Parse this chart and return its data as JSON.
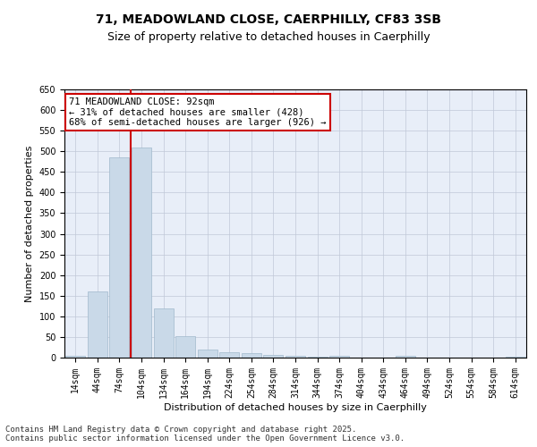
{
  "title_line1": "71, MEADOWLAND CLOSE, CAERPHILLY, CF83 3SB",
  "title_line2": "Size of property relative to detached houses in Caerphilly",
  "xlabel": "Distribution of detached houses by size in Caerphilly",
  "ylabel": "Number of detached properties",
  "categories": [
    "14sqm",
    "44sqm",
    "74sqm",
    "104sqm",
    "134sqm",
    "164sqm",
    "194sqm",
    "224sqm",
    "254sqm",
    "284sqm",
    "314sqm",
    "344sqm",
    "374sqm",
    "404sqm",
    "434sqm",
    "464sqm",
    "494sqm",
    "524sqm",
    "554sqm",
    "584sqm",
    "614sqm"
  ],
  "values": [
    5,
    160,
    485,
    510,
    120,
    52,
    20,
    12,
    10,
    7,
    5,
    3,
    5,
    0,
    0,
    5,
    0,
    0,
    0,
    0,
    3
  ],
  "bar_color": "#c9d9e8",
  "bar_edge_color": "#a0b8cc",
  "vline_x": 2.5,
  "vline_color": "#cc0000",
  "annotation_text": "71 MEADOWLAND CLOSE: 92sqm\n← 31% of detached houses are smaller (428)\n68% of semi-detached houses are larger (926) →",
  "annotation_box_color": "#ffffff",
  "annotation_box_edge": "#cc0000",
  "ylim": [
    0,
    650
  ],
  "yticks": [
    0,
    50,
    100,
    150,
    200,
    250,
    300,
    350,
    400,
    450,
    500,
    550,
    600,
    650
  ],
  "grid_color": "#c0c8d8",
  "bg_color": "#e8eef8",
  "footnote": "Contains HM Land Registry data © Crown copyright and database right 2025.\nContains public sector information licensed under the Open Government Licence v3.0.",
  "title_fontsize": 10,
  "subtitle_fontsize": 9,
  "xlabel_fontsize": 8,
  "ylabel_fontsize": 8,
  "tick_fontsize": 7,
  "annot_fontsize": 7.5,
  "footnote_fontsize": 6.5
}
